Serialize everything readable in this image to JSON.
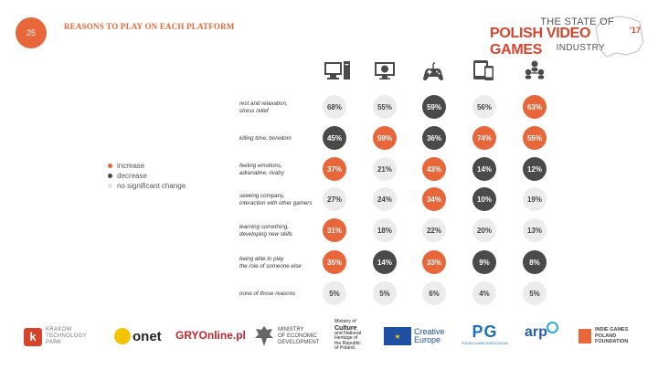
{
  "header": {
    "page_number": "25",
    "title": "REASONS TO PLAY ON EACH PLATFORM",
    "brand_line1": "THE STATE OF",
    "brand_line2": "POLISH VIDEO GAMES",
    "brand_year": "'17",
    "brand_line3": "INDUSTRY"
  },
  "legend": [
    {
      "label": "increase",
      "color": "#e8673a"
    },
    {
      "label": "decrease",
      "color": "#4a4a4a"
    },
    {
      "label": "no significant change",
      "color": "#e4e4e4"
    }
  ],
  "colors": {
    "increase": "#e8673a",
    "decrease": "#4a4a4a",
    "none": "#ececec",
    "accent": "#e8673a"
  },
  "chart_data": {
    "type": "table",
    "title": "REASONS TO PLAY ON EACH PLATFORM",
    "platform_icons": [
      "desktop-computer-icon",
      "web-browser-icon",
      "gamepad-icon",
      "mobile-devices-icon",
      "social-network-icon"
    ],
    "rows": [
      {
        "label": "rest and relaxation,\nstress relief",
        "values": [
          "68%",
          "55%",
          "59%",
          "56%",
          "63%"
        ],
        "change": [
          "none",
          "none",
          "decrease",
          "none",
          "increase"
        ]
      },
      {
        "label": "killing time, boredom",
        "values": [
          "45%",
          "59%",
          "36%",
          "74%",
          "55%"
        ],
        "change": [
          "decrease",
          "increase",
          "decrease",
          "increase",
          "increase"
        ]
      },
      {
        "label": "feeling emotions,\nadrenaline, rivalry",
        "values": [
          "37%",
          "21%",
          "43%",
          "14%",
          "12%"
        ],
        "change": [
          "increase",
          "none",
          "increase",
          "decrease",
          "decrease"
        ]
      },
      {
        "label": "seeking company,\ninteraction with other gamers",
        "values": [
          "27%",
          "24%",
          "34%",
          "10%",
          "19%"
        ],
        "change": [
          "none",
          "none",
          "increase",
          "decrease",
          "none"
        ]
      },
      {
        "label": "learning something,\ndeveloping new skills",
        "values": [
          "31%",
          "18%",
          "22%",
          "20%",
          "13%"
        ],
        "change": [
          "increase",
          "none",
          "none",
          "none",
          "none"
        ]
      },
      {
        "label": "being able to play\nthe role of someone else",
        "values": [
          "35%",
          "14%",
          "33%",
          "9%",
          "8%"
        ],
        "change": [
          "increase",
          "decrease",
          "increase",
          "decrease",
          "decrease"
        ]
      },
      {
        "label": "none of those reasons",
        "values": [
          "5%",
          "5%",
          "6%",
          "4%",
          "5%"
        ],
        "change": [
          "none",
          "none",
          "none",
          "none",
          "none"
        ]
      }
    ]
  },
  "footer": {
    "kraków_line1": "KRAKOW",
    "kraków_line2": "TECHNOLOGY",
    "kraków_line3": "PARK",
    "onet": "onet",
    "gry": "GRYOnline.pl",
    "ministry_econ_1": "MINISTRY",
    "ministry_econ_2": "OF ECONOMIC",
    "ministry_econ_3": "DEVELOPMENT",
    "ministry_culture_1": "Ministry of",
    "ministry_culture_2": "Culture",
    "ministry_culture_3": "and National",
    "ministry_culture_4": "Heritage of",
    "ministry_culture_5": "the Republic",
    "ministry_culture_6": "of Poland.",
    "creative_1": "Creative",
    "creative_2": "Europe",
    "pg": "PG",
    "pg_sub": "POLISH GAMES ASSOCIATION",
    "arp": "arp",
    "indie_1": "INDIE GAMES",
    "indie_2": "POLAND",
    "indie_3": "FOUNDATION"
  }
}
